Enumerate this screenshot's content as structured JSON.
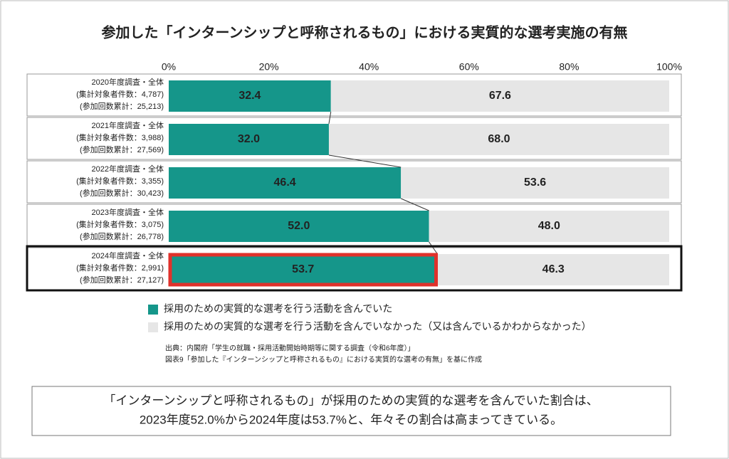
{
  "chart_data": {
    "type": "stacked-bar-horizontal",
    "title": "参加した「インターンシップと呼称されるもの」における実質的な選考実施の有無",
    "categories": [
      [
        "2020年度調査・全体",
        "(集計対象者件数：4,787)",
        "(参加回数累計：25,213)"
      ],
      [
        "2021年度調査・全体",
        "(集計対象者件数：3,988)",
        "(参加回数累計：27,569)"
      ],
      [
        "2022年度調査・全体",
        "(集計対象者件数：3,355)",
        "(参加回数累計：30,423)"
      ],
      [
        "2023年度調査・全体",
        "(集計対象者件数：3,075)",
        "(参加回数累計：26,778)"
      ],
      [
        "2024年度調査・全体",
        "(集計対象者件数：2,991)",
        "(参加回数累計：27,127)"
      ]
    ],
    "series": [
      {
        "name": "採用のための実質的な選考を行う活動を含んでいた",
        "color": "#15968a",
        "values": [
          32.4,
          32.0,
          46.4,
          52.0,
          53.7
        ],
        "value_labels": [
          "32.4",
          "32.0",
          "46.4",
          "52.0",
          "53.7"
        ]
      },
      {
        "name": "採用のための実質的な選考を行う活動を含んでいなかった（又は含んでいるかわからなかった）",
        "color": "#e6e6e6",
        "values": [
          67.6,
          68.0,
          53.6,
          48.0,
          46.3
        ],
        "value_labels": [
          "67.6",
          "68.0",
          "53.6",
          "48.0",
          "46.3"
        ]
      }
    ],
    "xlim": [
      0,
      100
    ],
    "xticks": [
      {
        "value": 0,
        "label": "0%"
      },
      {
        "value": 20,
        "label": "20%"
      },
      {
        "value": 40,
        "label": "40%"
      },
      {
        "value": 60,
        "label": "60%"
      },
      {
        "value": 80,
        "label": "80%"
      },
      {
        "value": 100,
        "label": "100%"
      }
    ],
    "highlight_index": 4,
    "source": [
      "出典：内閣府「学生の就職・採用活動開始時期等に関する調査（令和6年度）」",
      "図表9「参加した『インターンシップと呼称されるもの』における実質的な選考の有無」を基に作成"
    ],
    "note": [
      "「インターンシップと呼称されるもの」が採用のための実質的な選考を含んでいた割合は、",
      "2023年度52.0%から2024年度は53.7%と、年々その割合は高まってきている。"
    ]
  }
}
